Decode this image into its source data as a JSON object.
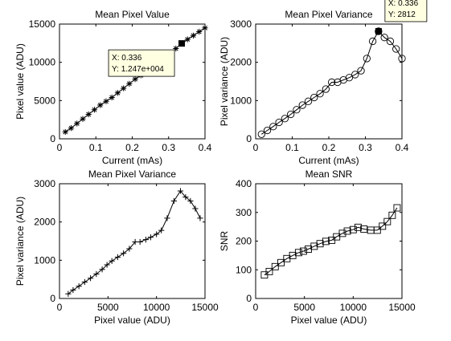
{
  "chart_data": [
    {
      "type": "scatter",
      "title": "Mean Pixel Value",
      "xlabel": "Current (mAs)",
      "ylabel": "Pixel value (ADU)",
      "xlim": [
        0,
        0.4
      ],
      "ylim": [
        0,
        15000
      ],
      "xticks": [
        0,
        0.1,
        0.2,
        0.3,
        0.4
      ],
      "yticks": [
        0,
        5000,
        10000,
        15000
      ],
      "xticklabels": [
        "0",
        "0.1",
        "0.2",
        "0.3",
        "0.4"
      ],
      "yticklabels": [
        "0",
        "5000",
        "10000",
        "15000"
      ],
      "grid": false,
      "marker": "asterisk",
      "line": true,
      "series": [
        {
          "x": [
            0.016,
            0.032,
            0.048,
            0.064,
            0.08,
            0.096,
            0.112,
            0.128,
            0.144,
            0.16,
            0.176,
            0.192,
            0.208,
            0.224,
            0.24,
            0.256,
            0.272,
            0.288,
            0.304,
            0.32,
            0.336,
            0.352,
            0.368,
            0.384,
            0.4
          ],
          "y": [
            900,
            1400,
            2000,
            2600,
            3200,
            3800,
            4400,
            4900,
            5400,
            6000,
            6600,
            7200,
            7800,
            8300,
            8900,
            9400,
            10000,
            10500,
            11100,
            11800,
            12470,
            13000,
            13500,
            14000,
            14500
          ]
        }
      ],
      "highlight": {
        "x": 0.336,
        "y": 12470
      },
      "datatip": {
        "line1": "X: 0.336",
        "line2": "Y: 1.247e+004",
        "side": "left"
      }
    },
    {
      "type": "scatter",
      "title": "Mean Pixel Variance",
      "xlabel": "Current (mAs)",
      "ylabel": "Pixel variance (ADU)",
      "xlim": [
        0,
        0.4
      ],
      "ylim": [
        0,
        3000
      ],
      "xticks": [
        0,
        0.1,
        0.2,
        0.3,
        0.4
      ],
      "yticks": [
        0,
        1000,
        2000,
        3000
      ],
      "xticklabels": [
        "0",
        "0.1",
        "0.2",
        "0.3",
        "0.4"
      ],
      "yticklabels": [
        "0",
        "1000",
        "2000",
        "3000"
      ],
      "grid": false,
      "marker": "circle",
      "line": true,
      "series": [
        {
          "x": [
            0.016,
            0.032,
            0.048,
            0.064,
            0.08,
            0.096,
            0.112,
            0.128,
            0.144,
            0.16,
            0.176,
            0.192,
            0.208,
            0.224,
            0.24,
            0.256,
            0.272,
            0.288,
            0.304,
            0.32,
            0.336,
            0.352,
            0.368,
            0.384,
            0.4
          ],
          "y": [
            120,
            220,
            320,
            430,
            530,
            640,
            760,
            880,
            980,
            1080,
            1180,
            1300,
            1480,
            1480,
            1540,
            1600,
            1680,
            1780,
            2100,
            2550,
            2812,
            2650,
            2550,
            2350,
            2100
          ]
        }
      ],
      "highlight": {
        "x": 0.336,
        "y": 2812
      },
      "datatip": {
        "line1": "X: 0.336",
        "line2": "Y: 2812",
        "side": "right"
      }
    },
    {
      "type": "scatter",
      "title": "Mean Pixel Variance",
      "xlabel": "Pixel value (ADU)",
      "ylabel": "Pixel variance (ADU)",
      "xlim": [
        0,
        15000
      ],
      "ylim": [
        0,
        3000
      ],
      "xticks": [
        0,
        5000,
        10000,
        15000
      ],
      "yticks": [
        0,
        1000,
        2000,
        3000
      ],
      "xticklabels": [
        "0",
        "5000",
        "10000",
        "15000"
      ],
      "yticklabels": [
        "0",
        "1000",
        "2000",
        "3000"
      ],
      "grid": false,
      "marker": "plus",
      "line": true,
      "series": [
        {
          "x": [
            900,
            1400,
            2000,
            2600,
            3200,
            3800,
            4400,
            4900,
            5400,
            6000,
            6600,
            7200,
            7800,
            8300,
            8900,
            9400,
            10000,
            10500,
            11100,
            11800,
            12470,
            13000,
            13500,
            14000,
            14500
          ],
          "y": [
            120,
            220,
            320,
            430,
            530,
            640,
            760,
            880,
            980,
            1080,
            1180,
            1300,
            1480,
            1480,
            1540,
            1600,
            1680,
            1780,
            2100,
            2550,
            2812,
            2650,
            2550,
            2350,
            2100
          ]
        }
      ]
    },
    {
      "type": "scatter",
      "title": "Mean SNR",
      "xlabel": "Pixel value (ADU)",
      "ylabel": "SNR",
      "xlim": [
        0,
        15000
      ],
      "ylim": [
        0,
        400
      ],
      "xticks": [
        0,
        5000,
        10000,
        15000
      ],
      "yticks": [
        0,
        100,
        200,
        300,
        400
      ],
      "xticklabels": [
        "0",
        "5000",
        "10000",
        "15000"
      ],
      "yticklabels": [
        "0",
        "100",
        "200",
        "300",
        "400"
      ],
      "grid": false,
      "marker": "square",
      "line": true,
      "series": [
        {
          "x": [
            900,
            1400,
            2000,
            2600,
            3200,
            3800,
            4400,
            4900,
            5400,
            6000,
            6600,
            7200,
            7800,
            8300,
            8900,
            9400,
            10000,
            10500,
            11100,
            11800,
            12470,
            13000,
            13500,
            14000,
            14500
          ],
          "y": [
            82,
            94,
            111,
            125,
            139,
            150,
            160,
            165,
            172,
            182,
            191,
            199,
            203,
            215,
            227,
            235,
            240,
            248,
            242,
            238,
            238,
            252,
            268,
            290,
            316
          ]
        }
      ]
    }
  ]
}
